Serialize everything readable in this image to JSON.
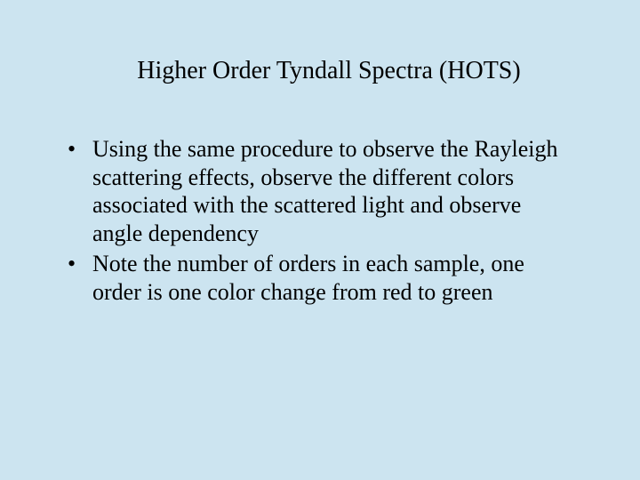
{
  "slide": {
    "background_color": "#cce4f0",
    "text_color": "#000000",
    "font_family": "Times New Roman",
    "title": {
      "text": "Higher Order Tyndall Spectra (HOTS)",
      "fontsize": 28,
      "align": "center"
    },
    "bullets": [
      "Using the same procedure to observe the Rayleigh scattering effects, observe the different colors associated with the scattered light and observe angle dependency",
      "Note the number of orders in each sample, one order is one color change from red to green"
    ],
    "bullet_fontsize": 26
  }
}
